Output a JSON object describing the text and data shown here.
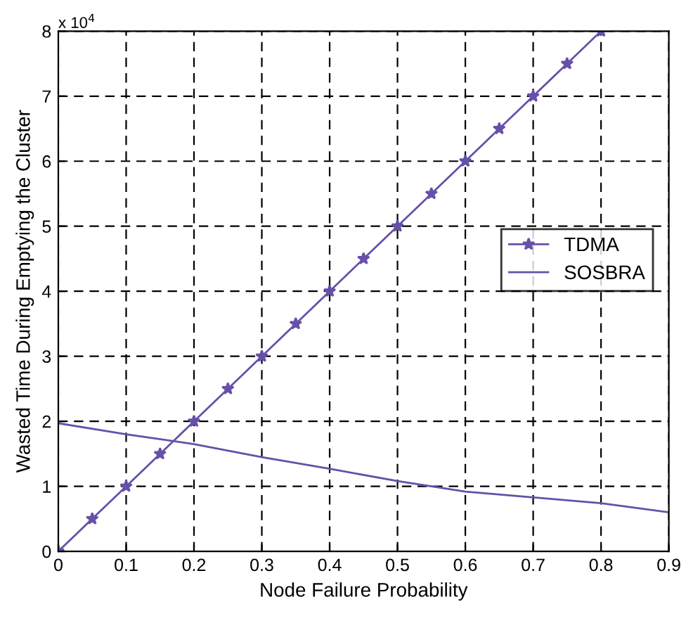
{
  "chart_data": {
    "type": "line",
    "xlabel": "Node Failure Probability",
    "ylabel": "Wasted Time During Emptying the Cluster",
    "annotations": [
      "x 10$^{4}$"
    ],
    "series": [
      {
        "name": "TDMA",
        "color": "#6650a8",
        "marker": "star",
        "x": [
          0,
          0.05,
          0.1,
          0.15,
          0.2,
          0.25,
          0.3,
          0.35,
          0.4,
          0.45,
          0.5,
          0.55,
          0.6,
          0.65,
          0.7,
          0.75,
          0.8
        ],
        "values": [
          0,
          0.5,
          1,
          1.5,
          2,
          2.5,
          3,
          3.5,
          4,
          4.5,
          5,
          5.5,
          6,
          6.5,
          7,
          7.5,
          8
        ]
      },
      {
        "name": "SOSBRA",
        "color": "#6650a8",
        "x": [
          0,
          0.1,
          0.2,
          0.3,
          0.4,
          0.5,
          0.55,
          0.6,
          0.7,
          0.8,
          0.9
        ],
        "values": [
          1.97,
          1.8,
          1.65,
          1.45,
          1.27,
          1.08,
          1.0,
          0.92,
          0.83,
          0.74,
          0.6
        ]
      }
    ],
    "xlim": [
      0,
      0.9
    ],
    "xticks": [
      0,
      0.1,
      0.2,
      0.3,
      0.4,
      0.5,
      0.6,
      0.7,
      0.8,
      0.9
    ],
    "ylim": [
      0,
      8
    ],
    "yticks": [
      0,
      1,
      2,
      3,
      4,
      5,
      6,
      7,
      8
    ],
    "grid": true,
    "legend": "right",
    "line_style": "solid"
  }
}
